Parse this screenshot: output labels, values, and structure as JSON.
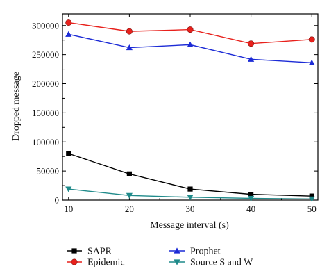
{
  "chart_data": {
    "type": "line",
    "title": "",
    "xlabel": "Message interval (s)",
    "ylabel": "Dropped message",
    "x": [
      10,
      20,
      30,
      40,
      50
    ],
    "xlim": [
      9,
      51
    ],
    "ylim": [
      0,
      320000
    ],
    "xticks": [
      "10",
      "20",
      "30",
      "40",
      "50"
    ],
    "yticks": [
      "0",
      "50000",
      "100000",
      "150000",
      "200000",
      "250000",
      "300000"
    ],
    "legend_position": "bottom",
    "series": [
      {
        "name": "SAPR",
        "color": "#000000",
        "marker": "square",
        "values": [
          80000,
          45000,
          19000,
          10000,
          7000
        ]
      },
      {
        "name": "Epidemic",
        "color": "#e8211c",
        "marker": "circle",
        "values": [
          305000,
          290000,
          293000,
          269000,
          276000
        ]
      },
      {
        "name": "Prophet",
        "color": "#1c2bd6",
        "marker": "triangle-up",
        "values": [
          285000,
          262000,
          267000,
          242000,
          236000
        ]
      },
      {
        "name": "Source S and W",
        "color": "#1f8a8a",
        "marker": "triangle-down",
        "values": [
          19000,
          8000,
          5000,
          3000,
          2000
        ]
      }
    ]
  }
}
